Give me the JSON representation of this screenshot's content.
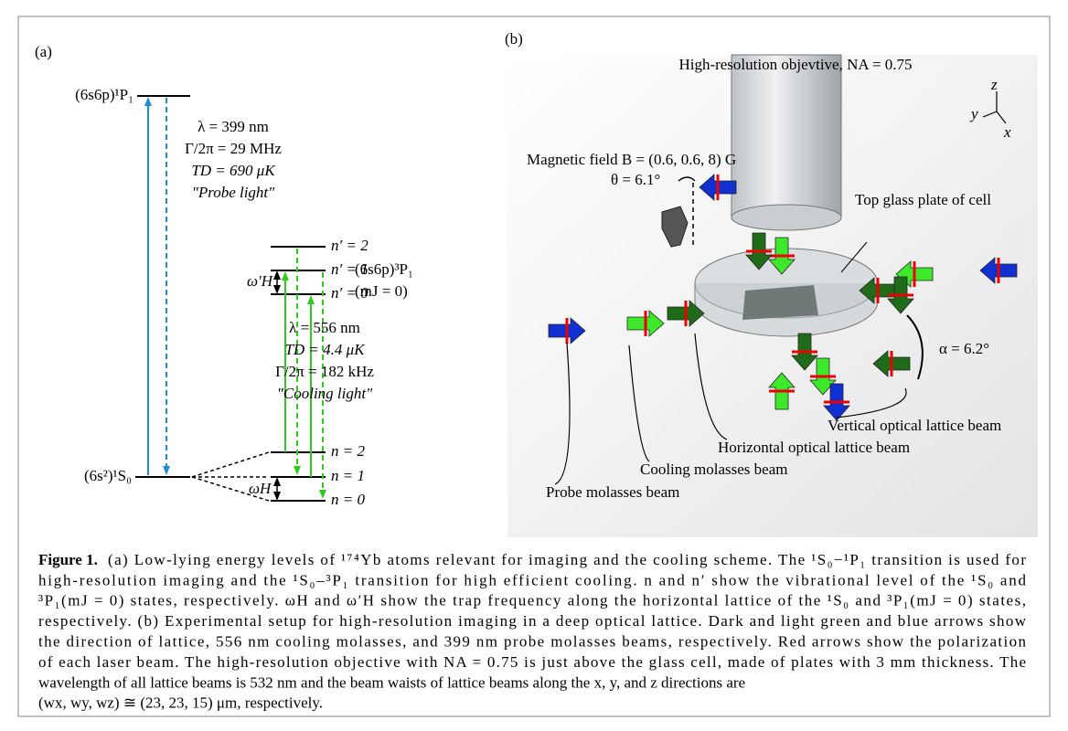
{
  "panel_a": {
    "label": "(a)",
    "upper_state": "(6s6p)¹P₁",
    "ground_state": "(6s²)¹S₀",
    "intermediate_state": "(6s6p)³P₁",
    "intermediate_mj": "(mJ = 0)",
    "probe": [
      "λ = 399 nm",
      "Γ/2π = 29 MHz",
      "TD = 690 μK",
      "\"Probe light\""
    ],
    "cooling": [
      "λ = 556 nm",
      "TD = 4.4 μK",
      "Γ/2π = 182 kHz",
      "\"Cooling light\""
    ],
    "excited_levels": [
      "n′ = 2",
      "n′ = 1",
      "n′ = 0"
    ],
    "ground_levels": [
      "n = 2",
      "n = 1",
      "n = 0"
    ],
    "omega_h_prime": "ω′H",
    "omega_h": "ωH"
  },
  "panel_b": {
    "label": "(b)",
    "objective": "High-resolution objevtive, NA = 0.75",
    "axes": [
      "z",
      "y",
      "x"
    ],
    "magnetic_field": "Magnetic field B = (0.6, 0.6, 8) G",
    "theta": "θ = 6.1°",
    "plate": "Top glass plate of cell",
    "alpha": "α = 6.2°",
    "beams": [
      "Vertical optical lattice beam",
      "Horizontal optical lattice beam",
      "Cooling molasses beam",
      "Probe molasses beam"
    ]
  },
  "caption": {
    "label": "Figure 1.",
    "lines": [
      "(a) Low-lying energy levels of ¹⁷⁴Yb atoms relevant for imaging and the cooling scheme. The ¹S₀−¹P₁ transition is used for",
      "high-resolution imaging and the ¹S₀–³P₁ transition for high efficient cooling. n and n′ show the vibrational level of the ¹S₀ and",
      "³P₁(mJ = 0) states, respectively. ωH and ω′H show the trap frequency along the horizontal lattice of the ¹S₀ and ³P₁(mJ = 0) states,",
      "respectively. (b) Experimental setup for high-resolution imaging in a deep optical lattice. Dark and light green and blue arrows show",
      "the direction of lattice, 556 nm cooling molasses, and 399 nm probe molasses beams, respectively. Red arrows show the polarization",
      "of each laser beam. The high-resolution objective with NA = 0.75 is just above the glass cell, made of plates with 3 mm thickness. The",
      "wavelength of all lattice beams is 532 nm and the beam waists of lattice beams along the x, y, and z directions are",
      "(wx, wy, wz) ≅ (23, 23, 15) μm, respectively."
    ]
  }
}
